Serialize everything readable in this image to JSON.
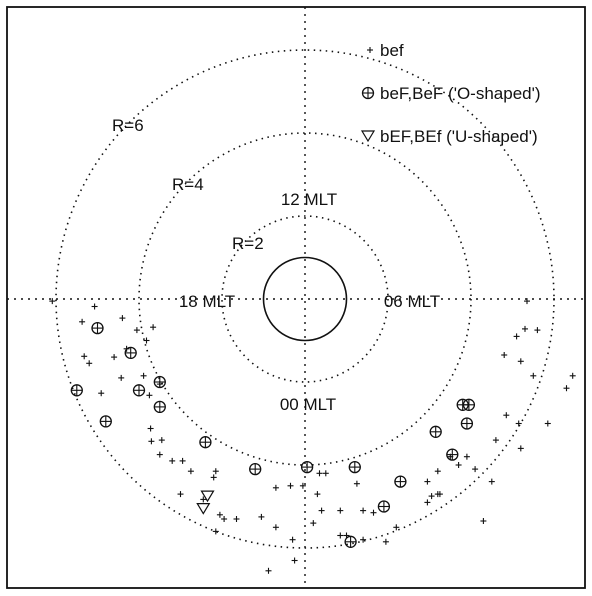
{
  "chart_data": {
    "type": "scatter",
    "coordinate_system": "polar (MLT)",
    "rings": [
      {
        "r": 2,
        "label": "R=2"
      },
      {
        "r": 4,
        "label": "R=4"
      },
      {
        "r": 6,
        "label": "R=6"
      }
    ],
    "earth_radius": 1,
    "mlt_labels": [
      "12 MLT",
      "06 MLT",
      "00 MLT",
      "18 MLT"
    ],
    "legend": [
      {
        "symbol": "+",
        "label": "bef"
      },
      {
        "symbol": "⊕",
        "label": "beF,BeF ('O-shaped')"
      },
      {
        "symbol": "▽",
        "label": "bEF,BEf ('U-shaped')"
      }
    ],
    "series": [
      {
        "name": "bef",
        "marker": "plus",
        "points": [
          {
            "x": -6.09,
            "y": -0.05
          },
          {
            "x": -5.07,
            "y": -0.18
          },
          {
            "x": -5.37,
            "y": -0.55
          },
          {
            "x": -4.4,
            "y": -0.46
          },
          {
            "x": -4.05,
            "y": -0.75
          },
          {
            "x": -3.66,
            "y": -0.68
          },
          {
            "x": -4.3,
            "y": -1.2
          },
          {
            "x": -3.82,
            "y": -1.0
          },
          {
            "x": -4.6,
            "y": -1.4
          },
          {
            "x": -5.32,
            "y": -1.38
          },
          {
            "x": -5.2,
            "y": -1.55
          },
          {
            "x": -4.43,
            "y": -1.9
          },
          {
            "x": -3.89,
            "y": -1.85
          },
          {
            "x": -3.5,
            "y": -2.05
          },
          {
            "x": -4.91,
            "y": -2.27
          },
          {
            "x": -3.75,
            "y": -2.32
          },
          {
            "x": -3.72,
            "y": -3.12
          },
          {
            "x": -3.7,
            "y": -3.43
          },
          {
            "x": -3.45,
            "y": -3.4
          },
          {
            "x": -3.5,
            "y": -3.75
          },
          {
            "x": -3.2,
            "y": -3.9
          },
          {
            "x": -2.95,
            "y": -3.9
          },
          {
            "x": -2.75,
            "y": -4.15
          },
          {
            "x": -2.15,
            "y": -4.15
          },
          {
            "x": -2.2,
            "y": -4.3
          },
          {
            "x": -3.0,
            "y": -4.7
          },
          {
            "x": -2.45,
            "y": -4.83
          },
          {
            "x": -2.05,
            "y": -5.2
          },
          {
            "x": -1.95,
            "y": -5.3
          },
          {
            "x": -1.65,
            "y": -5.3
          },
          {
            "x": -1.05,
            "y": -5.25
          },
          {
            "x": -0.7,
            "y": -4.55
          },
          {
            "x": -0.35,
            "y": -4.5
          },
          {
            "x": -0.7,
            "y": -5.5
          },
          {
            "x": -0.3,
            "y": -5.8
          },
          {
            "x": -2.15,
            "y": -5.6
          },
          {
            "x": -0.88,
            "y": -6.55
          },
          {
            "x": -0.25,
            "y": -6.3
          },
          {
            "x": -0.05,
            "y": -4.5
          },
          {
            "x": 0.35,
            "y": -4.2
          },
          {
            "x": 0.5,
            "y": -4.2
          },
          {
            "x": 0.3,
            "y": -4.7
          },
          {
            "x": 0.4,
            "y": -5.1
          },
          {
            "x": 0.2,
            "y": -5.4
          },
          {
            "x": 0.85,
            "y": -5.1
          },
          {
            "x": 0.85,
            "y": -5.7
          },
          {
            "x": 1.0,
            "y": -5.7
          },
          {
            "x": 1.4,
            "y": -5.1
          },
          {
            "x": 1.25,
            "y": -4.45
          },
          {
            "x": 1.4,
            "y": -5.8
          },
          {
            "x": 1.65,
            "y": -5.15
          },
          {
            "x": 1.95,
            "y": -5.85
          },
          {
            "x": 2.2,
            "y": -5.5
          },
          {
            "x": 2.95,
            "y": -4.9
          },
          {
            "x": 3.05,
            "y": -4.75
          },
          {
            "x": 3.2,
            "y": -4.7
          },
          {
            "x": 3.25,
            "y": -4.7
          },
          {
            "x": 2.95,
            "y": -4.4
          },
          {
            "x": 3.2,
            "y": -4.15
          },
          {
            "x": 3.5,
            "y": -3.8
          },
          {
            "x": 3.7,
            "y": -4.0
          },
          {
            "x": 4.5,
            "y": -4.4
          },
          {
            "x": 3.9,
            "y": -3.8
          },
          {
            "x": 4.1,
            "y": -4.1
          },
          {
            "x": 4.6,
            "y": -3.4
          },
          {
            "x": 5.2,
            "y": -3.6
          },
          {
            "x": 5.85,
            "y": -3.0
          },
          {
            "x": 5.15,
            "y": -3.0
          },
          {
            "x": 4.85,
            "y": -2.8
          },
          {
            "x": 6.45,
            "y": -1.85
          },
          {
            "x": 6.3,
            "y": -2.15
          },
          {
            "x": 5.5,
            "y": -1.85
          },
          {
            "x": 5.2,
            "y": -1.5
          },
          {
            "x": 5.3,
            "y": -0.72
          },
          {
            "x": 5.1,
            "y": -0.9
          },
          {
            "x": 4.8,
            "y": -1.35
          },
          {
            "x": 5.6,
            "y": -0.75
          },
          {
            "x": 5.35,
            "y": -0.05
          },
          {
            "x": 4.3,
            "y": -5.35
          }
        ]
      },
      {
        "name": "beF,BeF ('O-shaped')",
        "marker": "circle-plus",
        "points": [
          {
            "x": -5.0,
            "y": -0.7
          },
          {
            "x": -4.2,
            "y": -1.3
          },
          {
            "x": -3.5,
            "y": -2.0
          },
          {
            "x": -5.5,
            "y": -2.2
          },
          {
            "x": -4.0,
            "y": -2.2
          },
          {
            "x": -3.5,
            "y": -2.6
          },
          {
            "x": -4.8,
            "y": -2.95
          },
          {
            "x": -2.4,
            "y": -3.45
          },
          {
            "x": -1.2,
            "y": -4.1
          },
          {
            "x": 0.05,
            "y": -4.05
          },
          {
            "x": 1.2,
            "y": -4.05
          },
          {
            "x": 2.3,
            "y": -4.4
          },
          {
            "x": 1.9,
            "y": -5.0
          },
          {
            "x": 3.15,
            "y": -3.2
          },
          {
            "x": 3.9,
            "y": -3.0
          },
          {
            "x": 3.55,
            "y": -3.75
          },
          {
            "x": 3.8,
            "y": -2.55
          },
          {
            "x": 3.95,
            "y": -2.55
          },
          {
            "x": 1.1,
            "y": -5.85
          }
        ]
      },
      {
        "name": "bEF,BEf ('U-shaped')",
        "marker": "triangle-down",
        "points": [
          {
            "x": -2.35,
            "y": -4.75
          },
          {
            "x": -2.45,
            "y": -5.05
          }
        ]
      }
    ],
    "xlim": [
      -7,
      7
    ],
    "ylim": [
      -7,
      7
    ],
    "grid": false,
    "legend_position": "top-right"
  }
}
